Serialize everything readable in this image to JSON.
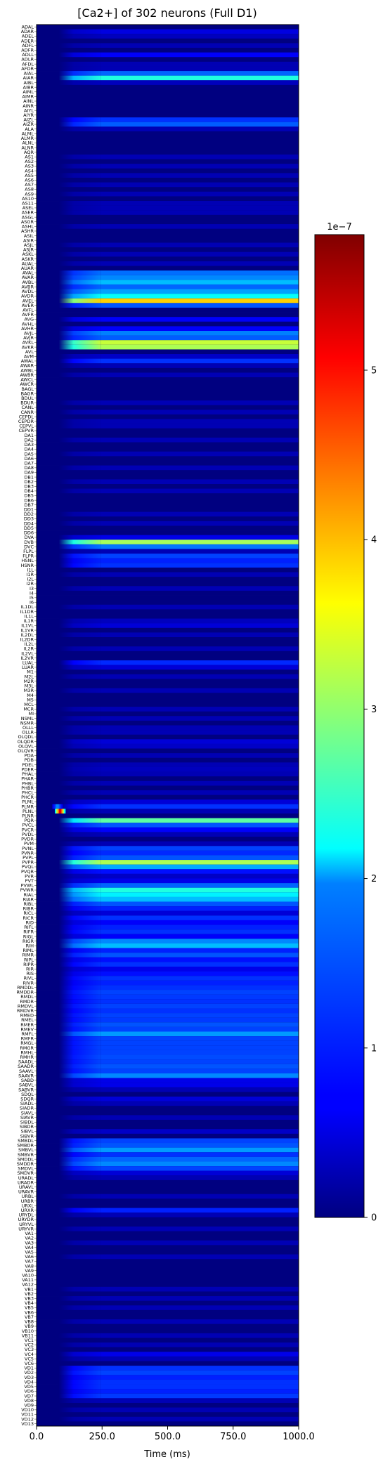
{
  "chart_data": {
    "type": "heatmap",
    "title": "[Ca2+] of 302 neurons (Full D1)",
    "xlabel": "Time (ms)",
    "ylabel": "",
    "xlim": [
      0,
      1000
    ],
    "x_ticks": [
      "0.0",
      "250.0",
      "500.0",
      "750.0",
      "1000.0"
    ],
    "x_tick_values": [
      0,
      250,
      500,
      750,
      1000
    ],
    "colormap": "jet",
    "colorbar": {
      "offset_text": "1e−7",
      "range": [
        0,
        5.8
      ],
      "ticks": [
        "0",
        "1",
        "2",
        "3",
        "4",
        "5"
      ],
      "tick_values": [
        0,
        1,
        2,
        3,
        4,
        5
      ]
    },
    "neurons": [
      "ADAL",
      "ADAR",
      "ADEL",
      "ADER",
      "ADFL",
      "ADFR",
      "ADLL",
      "ADLR",
      "AFDL",
      "AFDR",
      "AIAL",
      "AIAR",
      "AIBL",
      "AIBR",
      "AIML",
      "AIMR",
      "AINL",
      "AINR",
      "AIYL",
      "AIYR",
      "AIZL",
      "AIZR",
      "ALA",
      "ALML",
      "ALMR",
      "ALNL",
      "ALNR",
      "AQR",
      "AS1",
      "AS2",
      "AS3",
      "AS4",
      "AS5",
      "AS6",
      "AS7",
      "AS8",
      "AS9",
      "AS10",
      "AS11",
      "ASEL",
      "ASER",
      "ASGL",
      "ASGR",
      "ASHL",
      "ASHR",
      "ASIL",
      "ASIR",
      "ASJL",
      "ASJR",
      "ASKL",
      "ASKR",
      "AUAL",
      "AUAR",
      "AVAL",
      "AVAR",
      "AVBL",
      "AVBR",
      "AVDL",
      "AVDR",
      "AVEL",
      "AVER",
      "AVFL",
      "AVFR",
      "AVG",
      "AVHL",
      "AVHR",
      "AVJL",
      "AVJR",
      "AVKL",
      "AVKR",
      "AVL",
      "AVM",
      "AWAL",
      "AWAR",
      "AWBL",
      "AWBR",
      "AWCL",
      "AWCR",
      "BAGL",
      "BAGR",
      "BDUL",
      "BDUR",
      "CANL",
      "CANR",
      "CEPDL",
      "CEPDR",
      "CEPVL",
      "CEPVR",
      "DA1",
      "DA2",
      "DA3",
      "DA4",
      "DA5",
      "DA6",
      "DA7",
      "DA8",
      "DA9",
      "DB1",
      "DB2",
      "DB3",
      "DB4",
      "DB5",
      "DB6",
      "DB7",
      "DD1",
      "DD2",
      "DD3",
      "DD4",
      "DD5",
      "DD6",
      "DVA",
      "DVB",
      "DVC",
      "FLPL",
      "FLPR",
      "HSNL",
      "HSNR",
      "I1L",
      "I1R",
      "I2L",
      "I2R",
      "I3",
      "I4",
      "I5",
      "I6",
      "IL1DL",
      "IL1DR",
      "IL1L",
      "IL1R",
      "IL1VL",
      "IL1VR",
      "IL2DL",
      "IL2DR",
      "IL2L",
      "IL2R",
      "IL2VL",
      "IL2VR",
      "LUAL",
      "LUAR",
      "M1",
      "M2L",
      "M2R",
      "M3L",
      "M3R",
      "M4",
      "M5",
      "MCL",
      "MCR",
      "MI",
      "NSML",
      "NSMR",
      "OLLL",
      "OLLR",
      "OLQDL",
      "OLQDR",
      "OLQVL",
      "OLQVR",
      "PDA",
      "PDB",
      "PDEL",
      "PDER",
      "PHAL",
      "PHAR",
      "PHBL",
      "PHBR",
      "PHCL",
      "PHCR",
      "PLML",
      "PLMR",
      "PLNL",
      "PLNR",
      "PQR",
      "PVCL",
      "PVCR",
      "PVDL",
      "PVDR",
      "PVM",
      "PVNL",
      "PVNR",
      "PVPL",
      "PVPR",
      "PVQL",
      "PVQR",
      "PVR",
      "PVT",
      "PVWL",
      "PVWR",
      "RIAL",
      "RIAR",
      "RIBL",
      "RIBR",
      "RICL",
      "RICR",
      "RID",
      "RIFL",
      "RIFR",
      "RIGL",
      "RIGR",
      "RIH",
      "RIML",
      "RIMR",
      "RIPL",
      "RIPR",
      "RIR",
      "RIS",
      "RIVL",
      "RIVR",
      "RMDDL",
      "RMDDR",
      "RMDL",
      "RMDR",
      "RMDVL",
      "RMDVR",
      "RMED",
      "RMEL",
      "RMER",
      "RMEV",
      "RMFL",
      "RMFR",
      "RMGL",
      "RMGR",
      "RMHL",
      "RMHR",
      "SAADL",
      "SAADR",
      "SAAVL",
      "SAAVR",
      "SABD",
      "SABVL",
      "SABVR",
      "SDQL",
      "SDQR",
      "SIADL",
      "SIADR",
      "SIAVL",
      "SIAVR",
      "SIBDL",
      "SIBDR",
      "SIBVL",
      "SIBVR",
      "SMBDL",
      "SMBDR",
      "SMBVL",
      "SMBVR",
      "SMDDL",
      "SMDDR",
      "SMDVL",
      "SMDVR",
      "URADL",
      "URADR",
      "URAVL",
      "URAVR",
      "URBL",
      "URBR",
      "URXL",
      "URXR",
      "URYDL",
      "URYDR",
      "URYVL",
      "URYVR",
      "VA1",
      "VA2",
      "VA3",
      "VA4",
      "VA5",
      "VA6",
      "VA7",
      "VA8",
      "VA9",
      "VA10",
      "VA11",
      "VA12",
      "VB1",
      "VB2",
      "VB3",
      "VB4",
      "VB5",
      "VB6",
      "VB7",
      "VB8",
      "VB9",
      "VB10",
      "VB11",
      "VC1",
      "VC2",
      "VC3",
      "VC4",
      "VC5",
      "VC6",
      "VD1",
      "VD2",
      "VD3",
      "VD4",
      "VD5",
      "VD6",
      "VD7",
      "VD8",
      "VD9",
      "VD10",
      "VD11",
      "VD12",
      "VD13"
    ],
    "steady_values_e7": {
      "ADAR": 0.55,
      "ADEL": 0.35,
      "ADFL": 0.3,
      "ADLL": 0.7,
      "AFDL": 0.3,
      "AFDR": 0.3,
      "AIAL": 1.3,
      "AIAR": 2.35,
      "AIBL": 0.35,
      "AIZL": 1.0,
      "AIZR": 1.25,
      "ALA": 0.3,
      "AS1": 0.3,
      "AS3": 0.3,
      "AS5": 0.3,
      "AS7": 0.3,
      "AS9": 0.3,
      "AS11": 0.3,
      "ASEL": 0.3,
      "ASER": 0.3,
      "ASHL": 0.3,
      "ASJL": 0.3,
      "ASKL": 0.3,
      "AUAL": 0.3,
      "AVAL": 1.35,
      "AVAR": 1.5,
      "AVBL": 1.8,
      "AVBR": 1.3,
      "AVDL": 1.65,
      "AVDR": 2.2,
      "AVEL": 3.9,
      "AVER": 1.2,
      "AVG": 0.7,
      "AVHR": 0.7,
      "AVJL": 1.45,
      "AVJR": 1.25,
      "AVKL": 3.3,
      "AVKR": 3.15,
      "AVM": 0.4,
      "AWAL": 1.0,
      "AWAR": 0.3,
      "AWBR": 0.3,
      "BDUR": 0.3,
      "CANR": 0.3,
      "CEPDR": 0.3,
      "CEPVL": 0.3,
      "DA2": 0.3,
      "DA5": 0.3,
      "DA8": 0.3,
      "DB2": 0.3,
      "DB4": 0.3,
      "DD2": 0.3,
      "DD4": 0.3,
      "DVA": 0.6,
      "DVB": 3.1,
      "DVC": 1.4,
      "FLPL": 0.3,
      "FLPR": 1.1,
      "HSNL": 0.9,
      "HSNR": 1.0,
      "I1R": 0.3,
      "I3": 0.3,
      "IL1DL": 0.3,
      "IL1R": 0.35,
      "IL1VL": 0.5,
      "IL2DL": 0.3,
      "IL2R": 0.3,
      "LUAL": 0.95,
      "LUAR": 0.5,
      "M2L": 0.3,
      "M3R": 0.3,
      "MCR": 0.3,
      "NSML": 0.3,
      "OLLL": 0.3,
      "OLLR": 0.3,
      "OLQDR": 0.5,
      "OLQVL": 0.4,
      "PDA": 0.3,
      "PDEL": 0.3,
      "PDER": 0.35,
      "PHAL": 0.3,
      "PHBL": 0.3,
      "PHCL": 0.3,
      "PLML": 0.5,
      "PLMR": 1.0,
      "PLNL": 0.3,
      "PQR": 2.7,
      "PVCL": 1.2,
      "PVCR": 0.7,
      "PVDL": 0.3,
      "PVM": 0.3,
      "PVNL": 1.1,
      "PVNR": 0.95,
      "PVPL": 1.2,
      "PVPR": 3.15,
      "PVQL": 1.7,
      "PVQR": 0.8,
      "PVR": 0.4,
      "PVT": 0.6,
      "PVWL": 1.3,
      "PVWR": 2.35,
      "RIAL": 2.1,
      "RIAR": 1.8,
      "RIBL": 1.2,
      "RIBR": 0.9,
      "RICL": 0.5,
      "RICR": 1.0,
      "RID": 0.7,
      "RIFL": 0.9,
      "RIFR": 1.0,
      "RIGL": 0.7,
      "RIGR": 1.5,
      "RIH": 1.8,
      "RIML": 0.9,
      "RIMR": 1.2,
      "RIPL": 0.8,
      "RIPR": 1.0,
      "RIR": 0.6,
      "RIS": 0.8,
      "RIVL": 1.0,
      "RIVR": 0.9,
      "RMDDL": 1.0,
      "RMDDR": 1.1,
      "RMDL": 1.05,
      "RMDR": 1.0,
      "RMDVL": 1.1,
      "RMDVR": 1.0,
      "RMED": 1.1,
      "RMEL": 1.05,
      "RMER": 1.2,
      "RMEV": 1.1,
      "RMFL": 1.6,
      "RMFR": 1.1,
      "RMGL": 1.1,
      "RMGR": 1.1,
      "RMHL": 1.1,
      "RMHR": 1.15,
      "SAADL": 1.1,
      "SAADR": 1.2,
      "SAAVL": 1.1,
      "SAAVR": 1.5,
      "SABD": 0.6,
      "SABVL": 0.6,
      "SABVR": 0.3,
      "SDQR": 0.5,
      "SIADL": 0.3,
      "SIAVR": 0.3,
      "SIBVL": 0.4,
      "SMBDL": 1.1,
      "SMBDR": 1.2,
      "SMBVL": 1.6,
      "SMBVR": 1.0,
      "SMDDL": 1.3,
      "SMDDR": 1.5,
      "SMDVL": 1.1,
      "SMDVR": 0.5,
      "URADL": 0.3,
      "URBL": 0.3,
      "URXR": 0.9,
      "URYDL": 0.3,
      "URYVR": 0.3,
      "VA3": 0.3,
      "VA6": 0.3,
      "VB1": 0.3,
      "VB3": 0.3,
      "VB5": 0.3,
      "VB8": 0.3,
      "VB11": 0.3,
      "VC2": 0.3,
      "VC4": 0.6,
      "VC5": 0.3,
      "VD1": 1.0,
      "VD2": 1.1,
      "VD3": 0.9,
      "VD4": 1.0,
      "VD5": 1.0,
      "VD6": 0.9,
      "VD7": 1.05,
      "VD8": 0.3,
      "VD10": 0.3,
      "VD12": 0.3
    },
    "transient_neurons": {
      "PLNL": [
        5.7,
        70,
        110
      ],
      "PLMR": [
        1.6,
        60,
        100
      ]
    }
  }
}
